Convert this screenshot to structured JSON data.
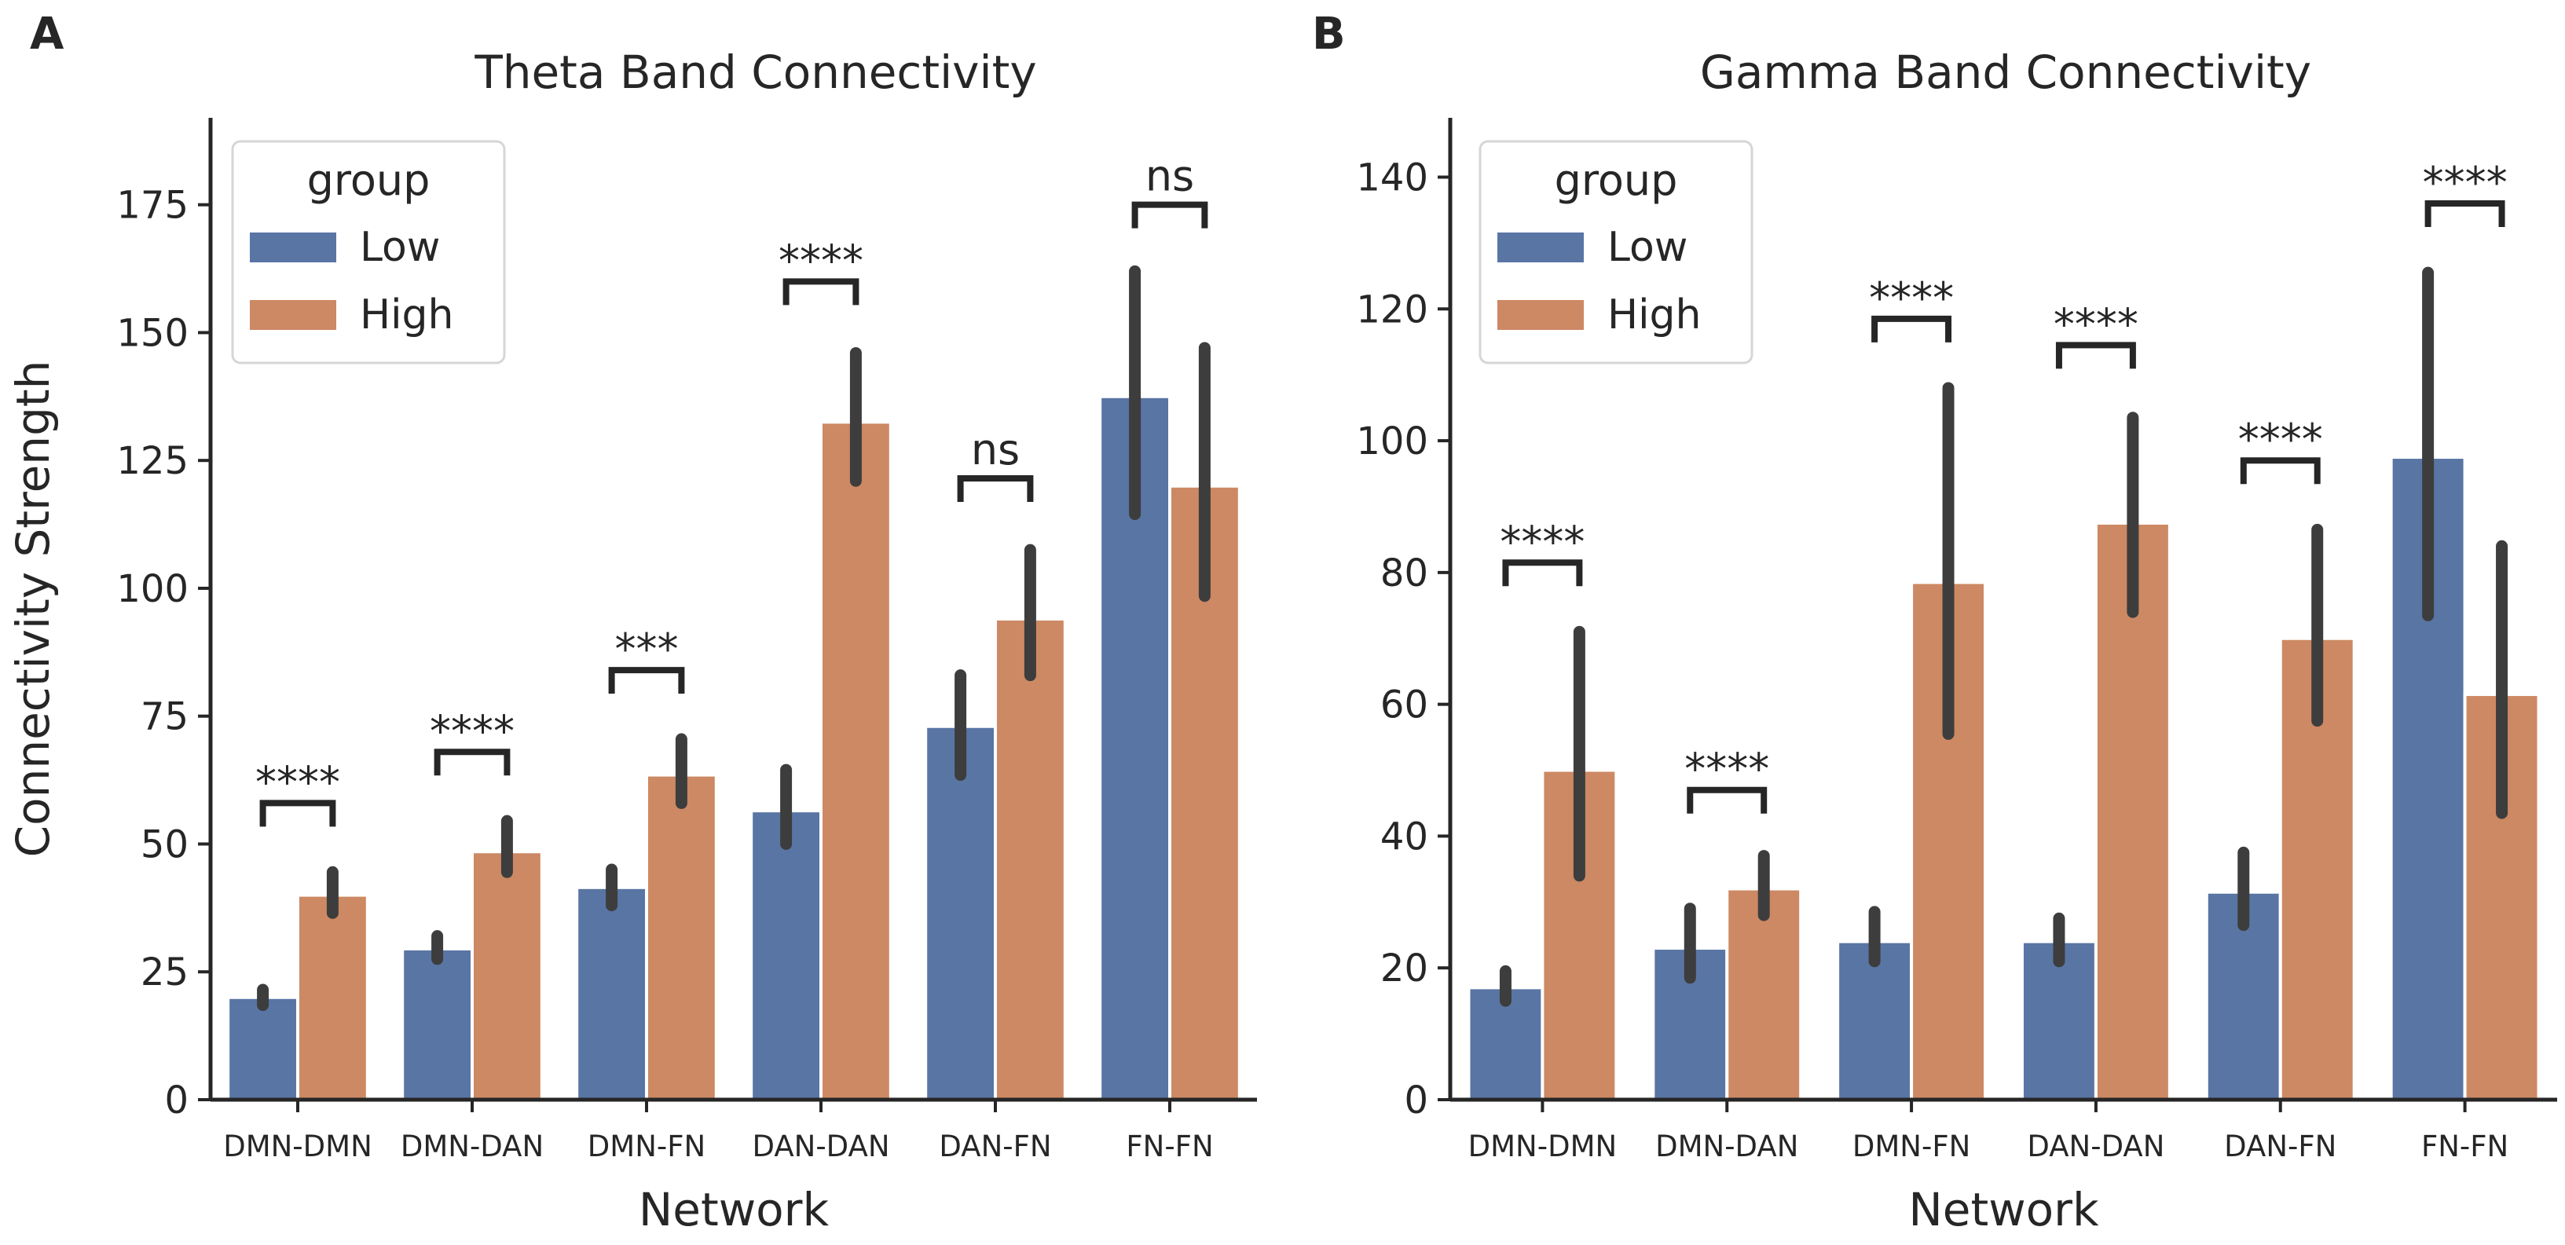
{
  "colors": {
    "low": "#5975a4",
    "high": "#cc8963"
  },
  "chart_data": [
    {
      "type": "bar",
      "panel_label": "A",
      "title": "Theta Band Connectivity",
      "xlabel": "Network",
      "ylabel": "Connectivity Strength",
      "ylim": [
        0,
        192
      ],
      "yticks": [
        0,
        25,
        50,
        75,
        100,
        125,
        150,
        175
      ],
      "categories": [
        "DMN-DMN",
        "DMN-DAN",
        "DMN-FN",
        "DAN-DAN",
        "DAN-FN",
        "FN-FN"
      ],
      "legend": {
        "title": "group",
        "position": "top-left",
        "entries": [
          "Low",
          "High"
        ]
      },
      "series": [
        {
          "name": "Low",
          "values": [
            20,
            29.5,
            41.5,
            56.5,
            73,
            137.5
          ],
          "ci_low": [
            18.5,
            27.5,
            38,
            50,
            63.5,
            114.5
          ],
          "ci_high": [
            21.5,
            32,
            45,
            64.5,
            83,
            162
          ]
        },
        {
          "name": "High",
          "values": [
            40,
            48.5,
            63.5,
            132.5,
            94,
            120
          ],
          "ci_low": [
            36.5,
            44.5,
            58,
            121,
            83,
            98.5
          ],
          "ci_high": [
            44.5,
            54.5,
            70.5,
            146,
            107.5,
            147
          ]
        }
      ],
      "annotations": [
        {
          "category": "DMN-DMN",
          "text": "****",
          "y": 58
        },
        {
          "category": "DMN-DAN",
          "text": "****",
          "y": 68
        },
        {
          "category": "DMN-FN",
          "text": "***",
          "y": 84
        },
        {
          "category": "DAN-DAN",
          "text": "****",
          "y": 160
        },
        {
          "category": "DAN-FN",
          "text": "ns",
          "y": 121.5
        },
        {
          "category": "FN-FN",
          "text": "ns",
          "y": 175
        }
      ]
    },
    {
      "type": "bar",
      "panel_label": "B",
      "title": "Gamma Band Connectivity",
      "xlabel": "Network",
      "ylabel": "",
      "ylim": [
        0,
        149
      ],
      "yticks": [
        0,
        20,
        40,
        60,
        80,
        100,
        120,
        140
      ],
      "categories": [
        "DMN-DMN",
        "DMN-DAN",
        "DMN-FN",
        "DAN-DAN",
        "DAN-FN",
        "FN-FN"
      ],
      "legend": {
        "title": "group",
        "position": "top-left",
        "entries": [
          "Low",
          "High"
        ]
      },
      "series": [
        {
          "name": "Low",
          "values": [
            17,
            23,
            24,
            24,
            31.5,
            97.5
          ],
          "ci_low": [
            15,
            18.5,
            21,
            21,
            26.5,
            73.5
          ],
          "ci_high": [
            19.5,
            29,
            28.5,
            27.5,
            37.5,
            125.5
          ]
        },
        {
          "name": "High",
          "values": [
            50,
            32,
            78.5,
            87.5,
            70,
            61.5
          ],
          "ci_low": [
            34,
            28,
            55.5,
            74,
            57.5,
            43.5
          ],
          "ci_high": [
            71,
            37,
            108,
            103.5,
            86.5,
            84
          ]
        }
      ],
      "annotations": [
        {
          "category": "DMN-DMN",
          "text": "****",
          "y": 81.5
        },
        {
          "category": "DMN-DAN",
          "text": "****",
          "y": 47
        },
        {
          "category": "DMN-FN",
          "text": "****",
          "y": 118.5
        },
        {
          "category": "DAN-DAN",
          "text": "****",
          "y": 114.5
        },
        {
          "category": "DAN-FN",
          "text": "****",
          "y": 97
        },
        {
          "category": "FN-FN",
          "text": "****",
          "y": 136
        }
      ]
    }
  ]
}
